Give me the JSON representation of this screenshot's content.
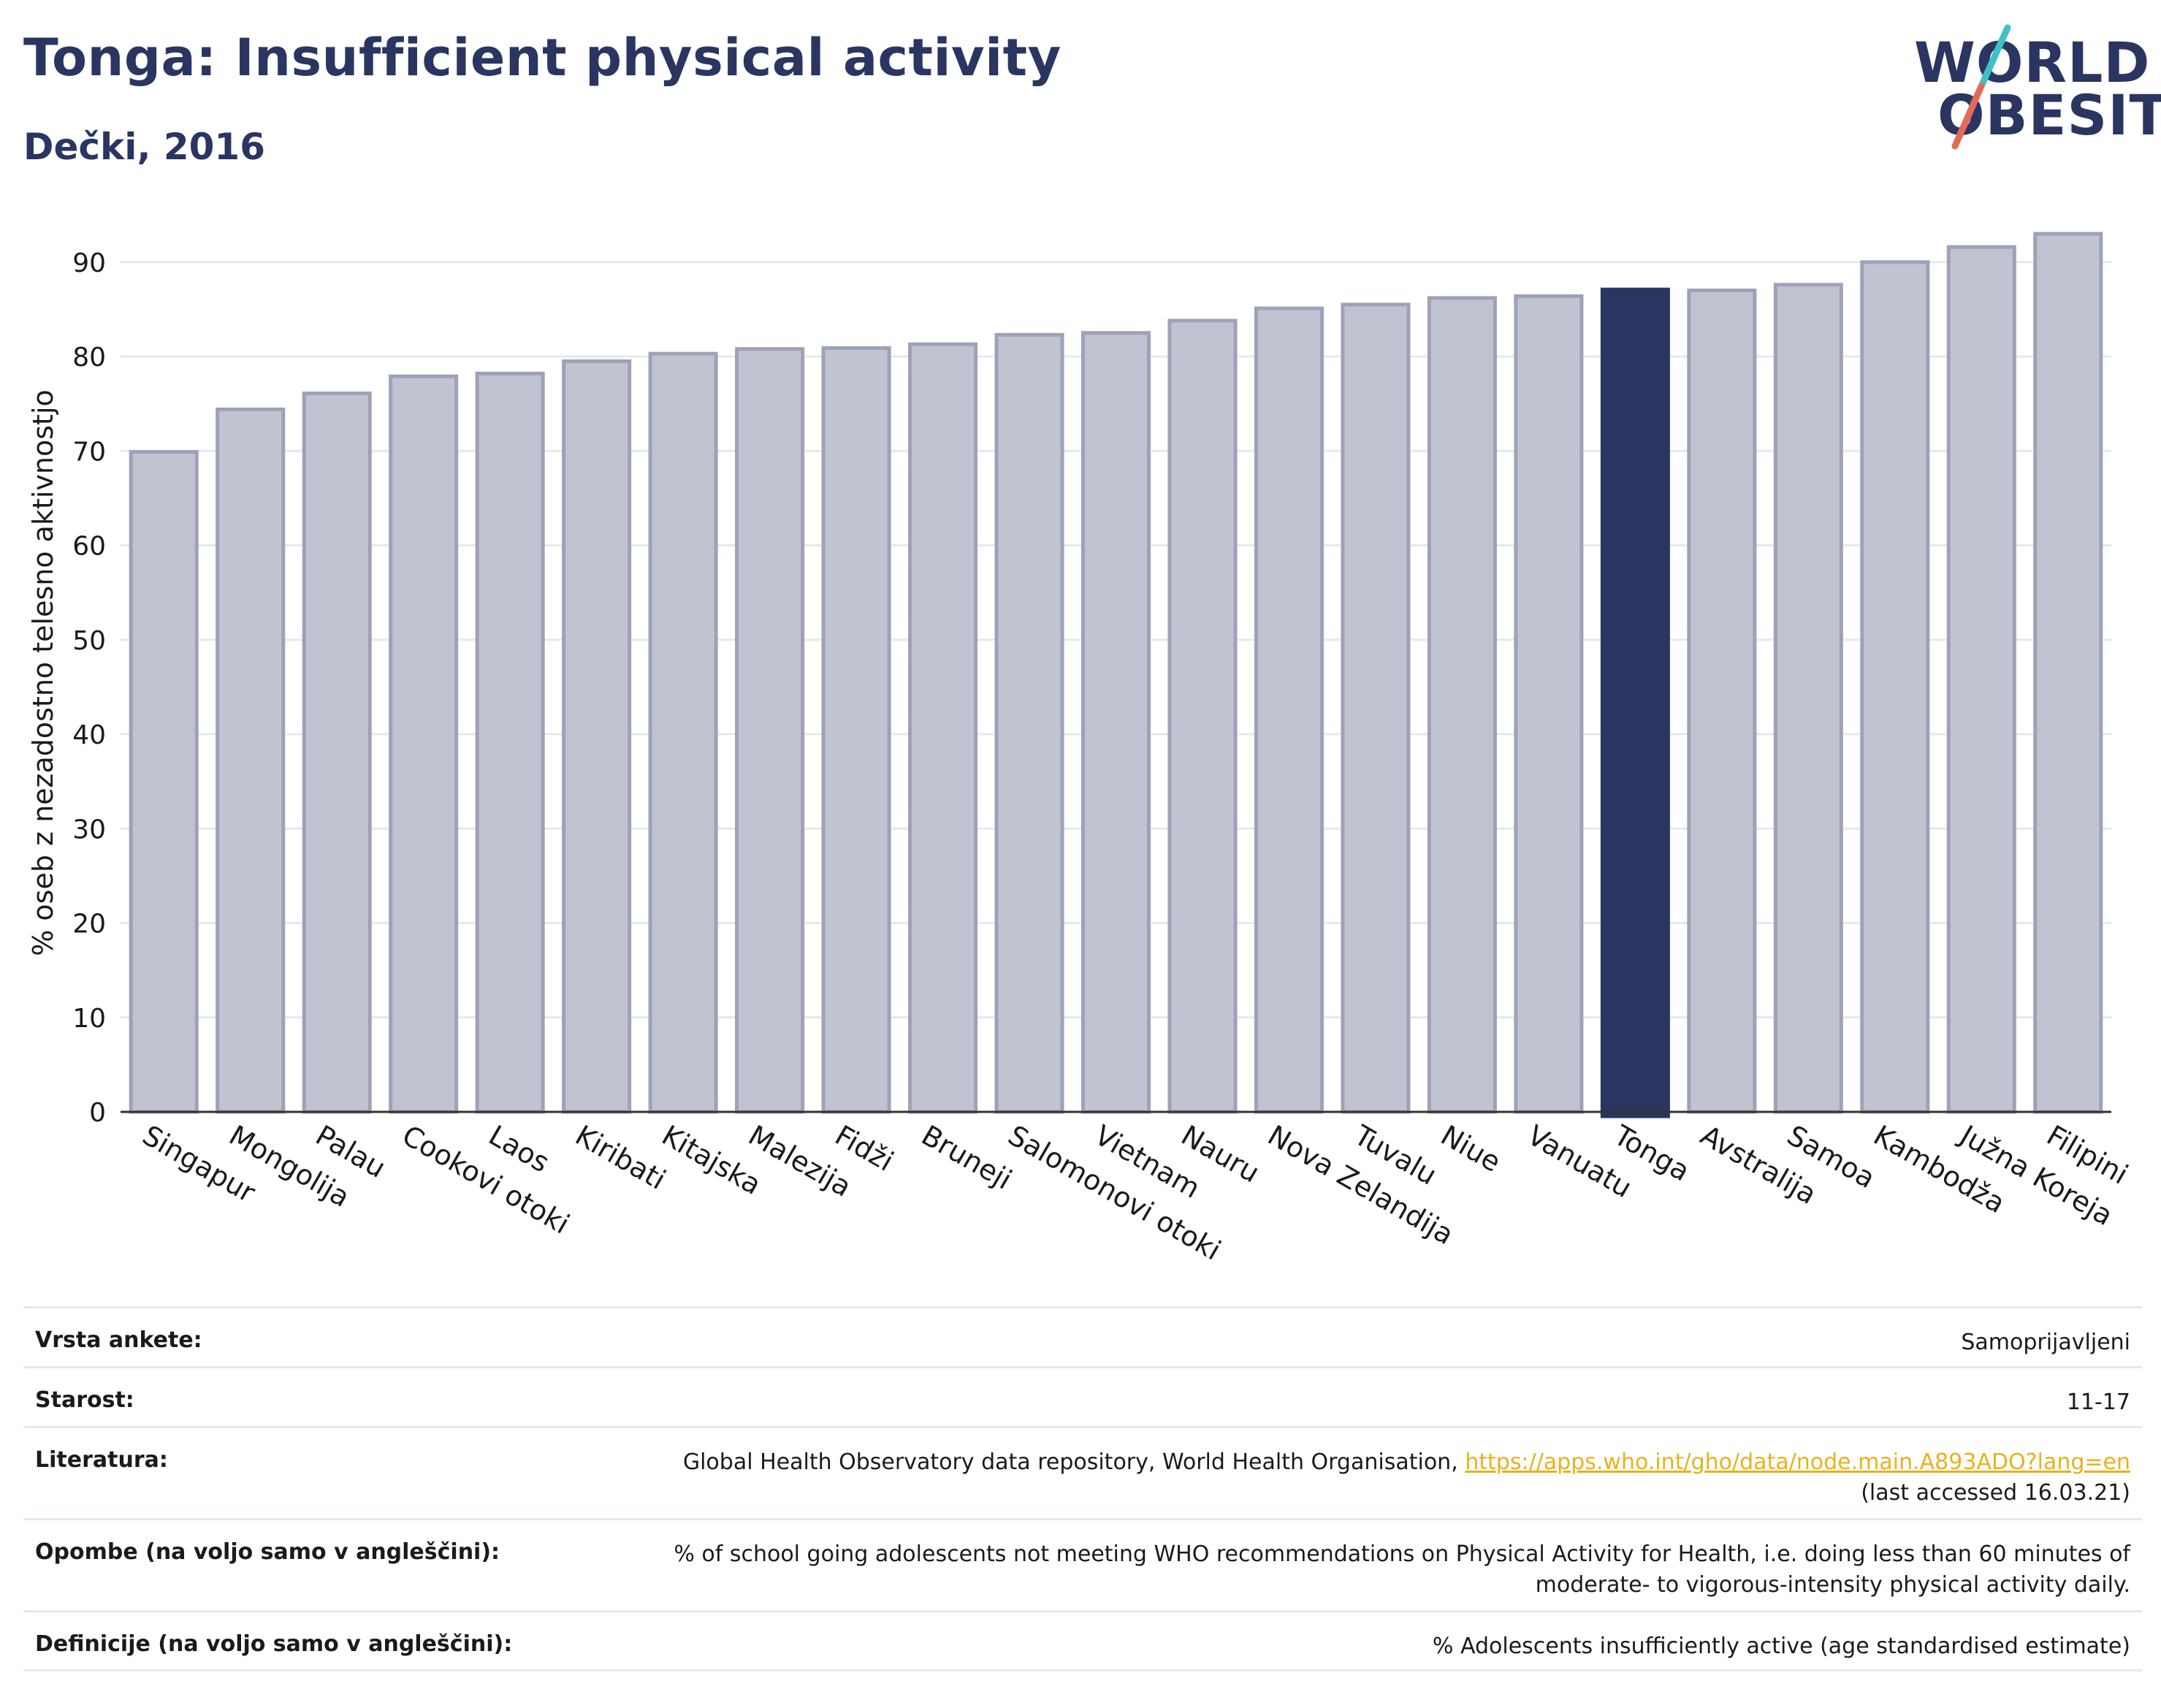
{
  "header": {
    "title": "Tonga: Insufficient physical activity",
    "subtitle": "Dečki, 2016"
  },
  "logo": {
    "line1": "WORLD",
    "line2": "OBESITY",
    "slash_color_1": "#3ec1c4",
    "slash_color_2": "#e36a59"
  },
  "chart_data": {
    "type": "bar",
    "title": "Tonga: Insufficient physical activity",
    "subtitle": "Dečki, 2016",
    "xlabel": "",
    "ylabel": "% oseb z nezadostno telesno aktivnostjo",
    "ylim": [
      0,
      93
    ],
    "yticks": [
      0,
      10,
      20,
      30,
      40,
      50,
      60,
      70,
      80,
      90
    ],
    "grid": true,
    "highlight": "Tonga",
    "colors": {
      "bar": "#c0c3d0",
      "bar_border": "#9da2b8",
      "highlight": "#2a3561",
      "grid": "#e6e8ee",
      "axis": "#333333"
    },
    "categories": [
      "Singapur",
      "Mongolija",
      "Palau",
      "Cookovi otoki",
      "Laos",
      "Kiribati",
      "Kitajska",
      "Malezija",
      "Fidži",
      "Bruneji",
      "Salomonovi otoki",
      "Vietnam",
      "Nauru",
      "Nova Zelandija",
      "Tuvalu",
      "Niue",
      "Vanuatu",
      "Tonga",
      "Avstralija",
      "Samoa",
      "Kambodža",
      "Južna Koreja",
      "Filipini"
    ],
    "values": [
      69.9,
      74.4,
      76.1,
      77.9,
      78.2,
      79.5,
      80.3,
      80.8,
      80.9,
      81.3,
      82.3,
      82.5,
      83.8,
      85.1,
      85.5,
      86.2,
      86.4,
      87.1,
      87.0,
      87.6,
      90.0,
      91.6,
      93.0
    ]
  },
  "meta": {
    "survey_label": "Vrsta ankete:",
    "survey_value": "Samoprijavljeni",
    "age_label": "Starost:",
    "age_value": "11-17",
    "ref_label": "Literatura:",
    "ref_text": "Global Health Observatory data repository, World Health Organisation, ",
    "ref_link": "https://apps.who.int/gho/data/node.main.A893ADO?lang=en",
    "ref_accessed": "(last accessed 16.03.21)",
    "notes_label": "Opombe (na voljo samo v angleščini):",
    "notes_line1": "% of school going adolescents not meeting WHO recommendations on Physical Activity for Health, i.e. doing less than 60 minutes of",
    "notes_line2": "moderate- to vigorous-intensity physical activity daily.",
    "def_label": "Definicije (na voljo samo v angleščini):",
    "def_value": "% Adolescents insufficiently active (age standardised estimate)"
  }
}
